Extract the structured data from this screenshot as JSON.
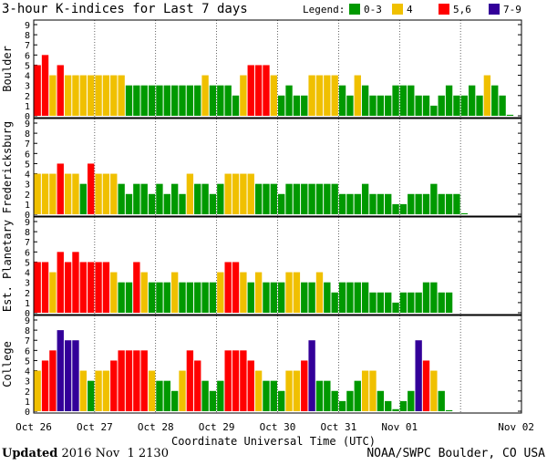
{
  "chart_data": {
    "type": "bar",
    "title": "3-hour K-indices for Last 7 days",
    "xlabel": "Coordinate Universal Time (UTC)",
    "ylim": [
      0,
      9
    ],
    "yticks": [
      "0",
      "1",
      "2",
      "3",
      "4",
      "5",
      "6",
      "7",
      "8",
      "9"
    ],
    "day_labels": [
      "Oct 26",
      "Oct 27",
      "Oct 28",
      "Oct 29",
      "Oct 30",
      "Oct 31",
      "Nov 01",
      "Nov 02"
    ],
    "legend_title": "Legend:",
    "legend": [
      {
        "label": "0-3",
        "color": "#009900"
      },
      {
        "label": "4",
        "color": "#f0c000"
      },
      {
        "label": "5,6",
        "color": "#ff0000"
      },
      {
        "label": "7-9",
        "color": "#330099"
      }
    ],
    "panels": [
      {
        "name": "Boulder",
        "values": [
          5,
          6,
          4,
          5,
          4,
          4,
          4,
          4,
          4,
          4,
          4,
          4,
          3,
          3,
          3,
          3,
          3,
          3,
          3,
          3,
          3,
          3,
          4,
          3,
          3,
          3,
          2,
          4,
          5,
          5,
          5,
          4,
          2,
          3,
          2,
          2,
          4,
          4,
          4,
          4,
          3,
          2,
          4,
          3,
          2,
          2,
          2,
          3,
          3,
          3,
          2,
          2,
          1,
          2,
          3,
          2,
          2,
          3,
          2,
          4,
          3,
          2,
          0.1
        ]
      },
      {
        "name": "Fredericksburg",
        "values": [
          4,
          4,
          4,
          5,
          4,
          4,
          3,
          5,
          4,
          4,
          4,
          3,
          2,
          3,
          3,
          2,
          3,
          2,
          3,
          2,
          4,
          3,
          3,
          2,
          3,
          4,
          4,
          4,
          4,
          3,
          3,
          3,
          2,
          3,
          3,
          3,
          3,
          3,
          3,
          3,
          2,
          2,
          2,
          3,
          2,
          2,
          2,
          1,
          1,
          2,
          2,
          2,
          3,
          2,
          2,
          2,
          0.1
        ]
      },
      {
        "name": "Est. Planetary",
        "values": [
          5,
          5,
          4,
          6,
          5,
          6,
          5,
          5,
          5,
          5,
          4,
          3,
          3,
          5,
          4,
          3,
          3,
          3,
          4,
          3,
          3,
          3,
          3,
          3,
          4,
          5,
          5,
          4,
          3,
          4,
          3,
          3,
          3,
          4,
          4,
          3,
          3,
          4,
          3,
          2,
          3,
          3,
          3,
          3,
          2,
          2,
          2,
          1,
          2,
          2,
          2,
          3,
          3,
          2,
          2
        ]
      },
      {
        "name": "College",
        "values": [
          4,
          5,
          6,
          8,
          7,
          7,
          4,
          3,
          4,
          4,
          5,
          6,
          6,
          6,
          6,
          4,
          3,
          3,
          2,
          4,
          6,
          5,
          3,
          2,
          3,
          6,
          6,
          6,
          5,
          4,
          3,
          3,
          2,
          4,
          4,
          5,
          7,
          3,
          3,
          2,
          1,
          2,
          3,
          4,
          4,
          2,
          1,
          0.2,
          1,
          2,
          7,
          5,
          4,
          2,
          0.1
        ]
      }
    ]
  },
  "footer": {
    "updated_label": "Updated",
    "updated_value": " 2016 Nov  1 2130",
    "source": "NOAA/SWPC Boulder, CO USA"
  }
}
